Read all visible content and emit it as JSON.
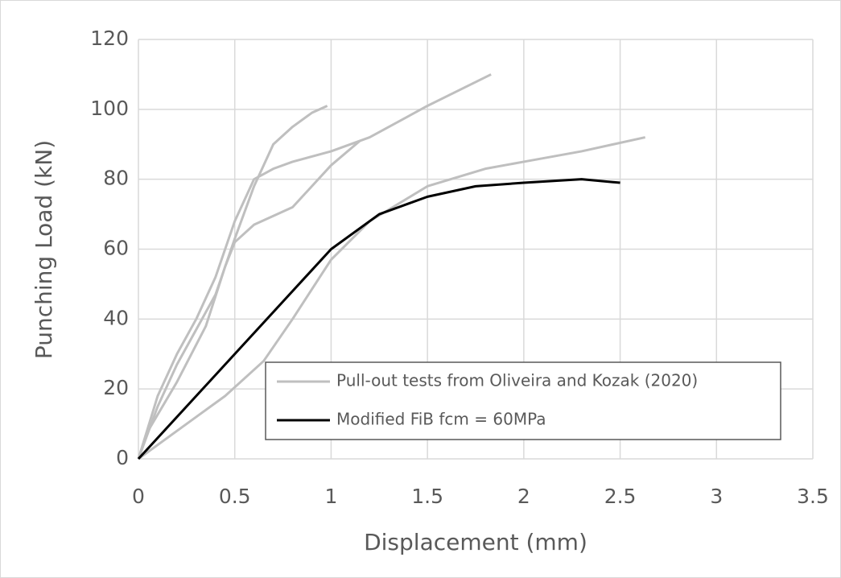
{
  "chart_data": {
    "type": "line",
    "x_label": "Displacement (mm)",
    "y_label": "Punching Load (kN)",
    "xlim": [
      0,
      3.5
    ],
    "xticks": [
      0,
      0.5,
      1,
      1.5,
      2,
      2.5,
      3,
      3.5
    ],
    "ylim": [
      0,
      120
    ],
    "yticks": [
      0,
      20,
      40,
      60,
      80,
      100,
      120
    ],
    "grid": true,
    "legend": "lower right",
    "series": [
      {
        "name": "Pull-out tests from Oliveira and Kozak (2020)",
        "color": "#bfbfbf",
        "x": [
          0,
          0.1,
          0.2,
          0.3,
          0.4,
          0.5,
          0.6,
          0.7,
          0.8,
          0.9,
          0.98
        ],
        "values": [
          0,
          15,
          27,
          37,
          47,
          63,
          78,
          90,
          95,
          99,
          101
        ]
      },
      {
        "color": "#bfbfbf",
        "x": [
          0,
          0.1,
          0.2,
          0.3,
          0.4,
          0.5,
          0.6,
          0.7,
          0.8,
          1,
          1.2,
          1.5,
          1.83
        ],
        "values": [
          0,
          18,
          30,
          40,
          52,
          68,
          80,
          83,
          85,
          88,
          92,
          101,
          110
        ]
      },
      {
        "color": "#bfbfbf",
        "x": [
          0,
          0.05,
          0.2,
          0.35,
          0.45,
          0.5,
          0.6,
          0.8,
          0.9,
          1,
          1.15
        ],
        "values": [
          0,
          8,
          22,
          38,
          55,
          62,
          67,
          72,
          78,
          84,
          91
        ]
      },
      {
        "color": "#bfbfbf",
        "x": [
          0,
          0.25,
          0.45,
          0.65,
          0.8,
          1,
          1.2,
          1.5,
          1.8,
          2,
          2.3,
          2.63
        ],
        "values": [
          0,
          10,
          18,
          28,
          40,
          57,
          68,
          78,
          83,
          85,
          88,
          92
        ]
      },
      {
        "name": "Modified FiB fcm = 60MPa",
        "color": "#000000",
        "x": [
          0,
          0.25,
          0.5,
          0.75,
          1,
          1.25,
          1.5,
          1.75,
          2,
          2.3,
          2.5
        ],
        "values": [
          0,
          15,
          30,
          45,
          60,
          70,
          75,
          78,
          79,
          80,
          79
        ]
      }
    ]
  }
}
